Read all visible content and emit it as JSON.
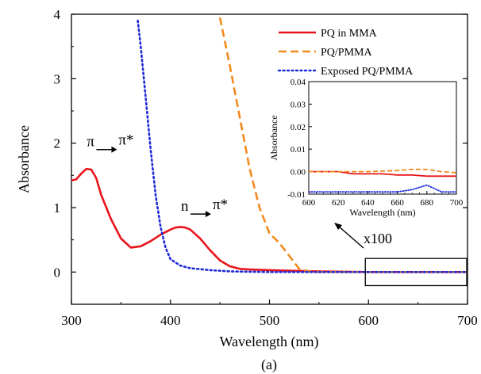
{
  "chart_data": {
    "type": "line",
    "panel_label": "(a)",
    "xlabel": "Wavelength (nm)",
    "ylabel": "Absorbance",
    "xlim": [
      300,
      700
    ],
    "ylim": [
      -0.5,
      4
    ],
    "x_ticks": [
      "300",
      "400",
      "500",
      "600",
      "700"
    ],
    "y_ticks": [
      "0",
      "1",
      "2",
      "3",
      "4"
    ],
    "grid": false,
    "legend_position": "top-right",
    "series": [
      {
        "name": "PQ in MMA",
        "color": "#e8141c",
        "style": "solid",
        "points": [
          [
            300,
            1.42
          ],
          [
            305,
            1.44
          ],
          [
            310,
            1.53
          ],
          [
            315,
            1.6
          ],
          [
            320,
            1.59
          ],
          [
            325,
            1.46
          ],
          [
            330,
            1.2
          ],
          [
            340,
            0.82
          ],
          [
            350,
            0.52
          ],
          [
            360,
            0.38
          ],
          [
            370,
            0.4
          ],
          [
            380,
            0.48
          ],
          [
            390,
            0.58
          ],
          [
            400,
            0.66
          ],
          [
            405,
            0.69
          ],
          [
            410,
            0.7
          ],
          [
            415,
            0.69
          ],
          [
            420,
            0.66
          ],
          [
            430,
            0.52
          ],
          [
            440,
            0.34
          ],
          [
            450,
            0.18
          ],
          [
            460,
            0.09
          ],
          [
            470,
            0.05
          ],
          [
            480,
            0.04
          ],
          [
            500,
            0.03
          ],
          [
            550,
            0.01
          ],
          [
            600,
            0.0
          ],
          [
            650,
            0.0
          ],
          [
            700,
            0.0
          ]
        ]
      },
      {
        "name": "PQ/PMMA",
        "color": "#f28a1e",
        "style": "dashed",
        "points": [
          [
            450,
            3.95
          ],
          [
            460,
            3.2
          ],
          [
            470,
            2.4
          ],
          [
            480,
            1.6
          ],
          [
            490,
            1.0
          ],
          [
            500,
            0.6
          ],
          [
            510,
            0.45
          ],
          [
            520,
            0.25
          ],
          [
            530,
            0.05
          ],
          [
            540,
            0.01
          ],
          [
            550,
            0.0
          ],
          [
            600,
            0.0
          ],
          [
            650,
            0.0
          ],
          [
            700,
            0.0
          ]
        ]
      },
      {
        "name": "Exposed PQ/PMMA",
        "color": "#1f2ad8",
        "style": "dotted",
        "points": [
          [
            367,
            3.9
          ],
          [
            370,
            3.5
          ],
          [
            375,
            2.7
          ],
          [
            380,
            1.9
          ],
          [
            385,
            1.2
          ],
          [
            390,
            0.7
          ],
          [
            395,
            0.38
          ],
          [
            400,
            0.2
          ],
          [
            410,
            0.1
          ],
          [
            420,
            0.06
          ],
          [
            440,
            0.03
          ],
          [
            460,
            0.01
          ],
          [
            500,
            0.0
          ],
          [
            600,
            0.0
          ],
          [
            700,
            0.0
          ]
        ]
      }
    ],
    "annotations": [
      {
        "text": "π",
        "arrow_to": "π*",
        "x": 330,
        "y": 1.95
      },
      {
        "text": "n",
        "arrow_to": "π*",
        "x": 425,
        "y": 0.95
      }
    ],
    "zoom_box": {
      "xlim": [
        596,
        700
      ],
      "ylim": [
        -0.1,
        0.1
      ],
      "label": "x100"
    },
    "inset": {
      "xlabel": "Wavelength (nm)",
      "ylabel": "Absorbance",
      "xlim": [
        600,
        700
      ],
      "ylim": [
        -0.01,
        0.04
      ],
      "x_ticks": [
        "600",
        "620",
        "640",
        "660",
        "680",
        "700"
      ],
      "y_ticks": [
        "-0.01",
        "0.00",
        "0.01",
        "0.02",
        "0.03",
        "0.04"
      ],
      "series": [
        {
          "name": "PQ in MMA",
          "color": "#e8141c",
          "style": "solid",
          "points": [
            [
              600,
              0.0
            ],
            [
              620,
              0.0
            ],
            [
              630,
              -0.001
            ],
            [
              640,
              -0.001
            ],
            [
              650,
              -0.001
            ],
            [
              660,
              -0.0015
            ],
            [
              670,
              -0.0015
            ],
            [
              680,
              -0.002
            ],
            [
              690,
              -0.002
            ],
            [
              700,
              -0.002
            ]
          ]
        },
        {
          "name": "PQ/PMMA",
          "color": "#f28a1e",
          "style": "dashed",
          "points": [
            [
              600,
              0.0
            ],
            [
              620,
              0.0
            ],
            [
              640,
              0.0
            ],
            [
              660,
              0.0005
            ],
            [
              670,
              0.001
            ],
            [
              680,
              0.001
            ],
            [
              690,
              0.0
            ],
            [
              700,
              -0.0005
            ]
          ]
        },
        {
          "name": "Exposed PQ/PMMA",
          "color": "#1f2ad8",
          "style": "dotted",
          "points": [
            [
              600,
              -0.009
            ],
            [
              620,
              -0.009
            ],
            [
              640,
              -0.009
            ],
            [
              660,
              -0.009
            ],
            [
              670,
              -0.008
            ],
            [
              680,
              -0.006
            ],
            [
              690,
              -0.009
            ],
            [
              700,
              -0.009
            ]
          ]
        }
      ]
    }
  }
}
